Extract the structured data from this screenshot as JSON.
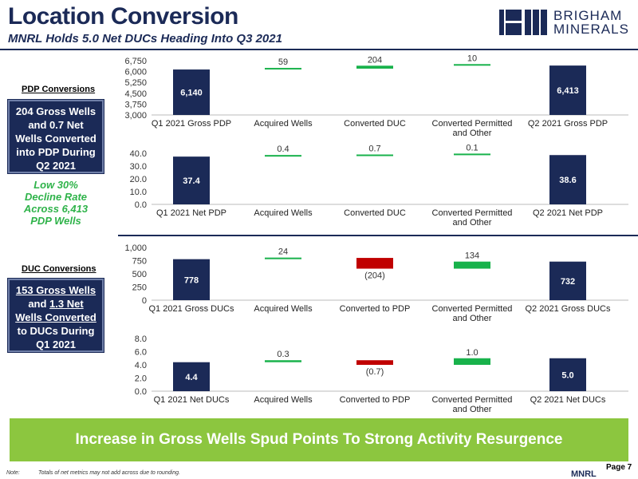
{
  "header": {
    "title": "Location Conversion",
    "subtitle": "MNRL Holds 5.0 Net DUCs Heading Into Q3 2021"
  },
  "logo": {
    "line1": "BRIGHAM",
    "line2": "MINERALS"
  },
  "sidebar": {
    "pdp_label": "PDP Conversions",
    "pdp_box": [
      "204 Gross Wells",
      "and 0.7 Net",
      "Wells Converted",
      "into PDP During",
      "Q2 2021"
    ],
    "decline": [
      "Low 30%",
      "Decline Rate",
      "Across 6,413",
      "PDP Wells"
    ],
    "duc_label": "DUC Conversions",
    "duc_box": [
      "153 Gross Wells",
      "and 1.3 Net",
      "Wells Converted",
      "to DUCs During",
      "Q1 2021"
    ]
  },
  "banner": "Increase in Gross Wells Spud Points To Strong Activity Resurgence",
  "footer": {
    "note_key": "Note:",
    "note_text": "Totals of net metrics may not add across due to rounding.",
    "ticker": "MNRL",
    "page": "Page 7"
  },
  "colors": {
    "navy": "#1b2a57",
    "increase": "#18b24b",
    "decrease": "#c00000",
    "banner": "#8cc63f"
  },
  "chart_data": [
    {
      "type": "bar",
      "subtype": "waterfall",
      "categories": [
        "Q1 2021 Gross PDP",
        "Acquired Wells",
        "Converted DUC",
        "Converted Permitted and Other",
        "Q2 2021 Gross PDP"
      ],
      "steps": [
        {
          "kind": "total",
          "value": 6140,
          "label": "6,140"
        },
        {
          "kind": "delta",
          "value": 59,
          "label": "59"
        },
        {
          "kind": "delta",
          "value": 204,
          "label": "204"
        },
        {
          "kind": "delta",
          "value": 10,
          "label": "10"
        },
        {
          "kind": "total",
          "value": 6413,
          "label": "6,413"
        }
      ],
      "yticks": [
        "3,000",
        "3,750",
        "4,500",
        "5,250",
        "6,000",
        "6,750"
      ],
      "ylim": [
        3000,
        6750
      ]
    },
    {
      "type": "bar",
      "subtype": "waterfall",
      "categories": [
        "Q1 2021 Net PDP",
        "Acquired Wells",
        "Converted DUC",
        "Converted Permitted and Other",
        "Q2 2021 Net PDP"
      ],
      "steps": [
        {
          "kind": "total",
          "value": 37.4,
          "label": "37.4"
        },
        {
          "kind": "delta",
          "value": 0.4,
          "label": "0.4"
        },
        {
          "kind": "delta",
          "value": 0.7,
          "label": "0.7"
        },
        {
          "kind": "delta",
          "value": 0.1,
          "label": "0.1"
        },
        {
          "kind": "total",
          "value": 38.6,
          "label": "38.6"
        }
      ],
      "yticks": [
        "0.0",
        "10.0",
        "20.0",
        "30.0",
        "40.0"
      ],
      "ylim": [
        0,
        40
      ]
    },
    {
      "type": "bar",
      "subtype": "waterfall",
      "categories": [
        "Q1 2021 Gross DUCs",
        "Acquired Wells",
        "Converted to PDP",
        "Converted Permitted and Other",
        "Q2 2021 Gross DUCs"
      ],
      "steps": [
        {
          "kind": "total",
          "value": 778,
          "label": "778"
        },
        {
          "kind": "delta",
          "value": 24,
          "label": "24"
        },
        {
          "kind": "delta",
          "value": -204,
          "label": "(204)"
        },
        {
          "kind": "delta",
          "value": 134,
          "label": "134"
        },
        {
          "kind": "total",
          "value": 732,
          "label": "732"
        }
      ],
      "yticks": [
        "0",
        "250",
        "500",
        "750",
        "1,000"
      ],
      "ylim": [
        0,
        1000
      ]
    },
    {
      "type": "bar",
      "subtype": "waterfall",
      "categories": [
        "Q1 2021 Net DUCs",
        "Acquired Wells",
        "Converted to PDP",
        "Converted Permitted and Other",
        "Q2 2021 Net DUCs"
      ],
      "steps": [
        {
          "kind": "total",
          "value": 4.4,
          "label": "4.4"
        },
        {
          "kind": "delta",
          "value": 0.3,
          "label": "0.3"
        },
        {
          "kind": "delta",
          "value": -0.7,
          "label": "(0.7)"
        },
        {
          "kind": "delta",
          "value": 1.0,
          "label": "1.0"
        },
        {
          "kind": "total",
          "value": 5.0,
          "label": "5.0"
        }
      ],
      "yticks": [
        "0.0",
        "2.0",
        "4.0",
        "6.0",
        "8.0"
      ],
      "ylim": [
        0,
        8
      ]
    }
  ]
}
